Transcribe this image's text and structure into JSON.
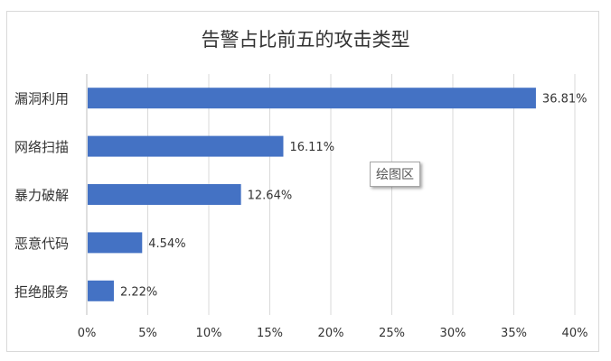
{
  "chart_data": {
    "type": "bar",
    "orientation": "horizontal",
    "title": "告警占比前五的攻击类型",
    "categories": [
      "漏洞利用",
      "网络扫描",
      "暴力破解",
      "恶意代码",
      "拒绝服务"
    ],
    "values": [
      36.81,
      16.11,
      12.64,
      4.54,
      2.22
    ],
    "data_labels": [
      "36.81%",
      "16.11%",
      "12.64%",
      "4.54%",
      "2.22%"
    ],
    "xlim": [
      0,
      40
    ],
    "x_ticks": [
      0,
      5,
      10,
      15,
      20,
      25,
      30,
      35,
      40
    ],
    "x_tick_labels": [
      "0%",
      "5%",
      "10%",
      "15%",
      "20%",
      "25%",
      "30%",
      "35%",
      "40%"
    ],
    "grid": true,
    "bar_color": "#4472c4"
  },
  "tooltip": {
    "label": "绘图区"
  }
}
